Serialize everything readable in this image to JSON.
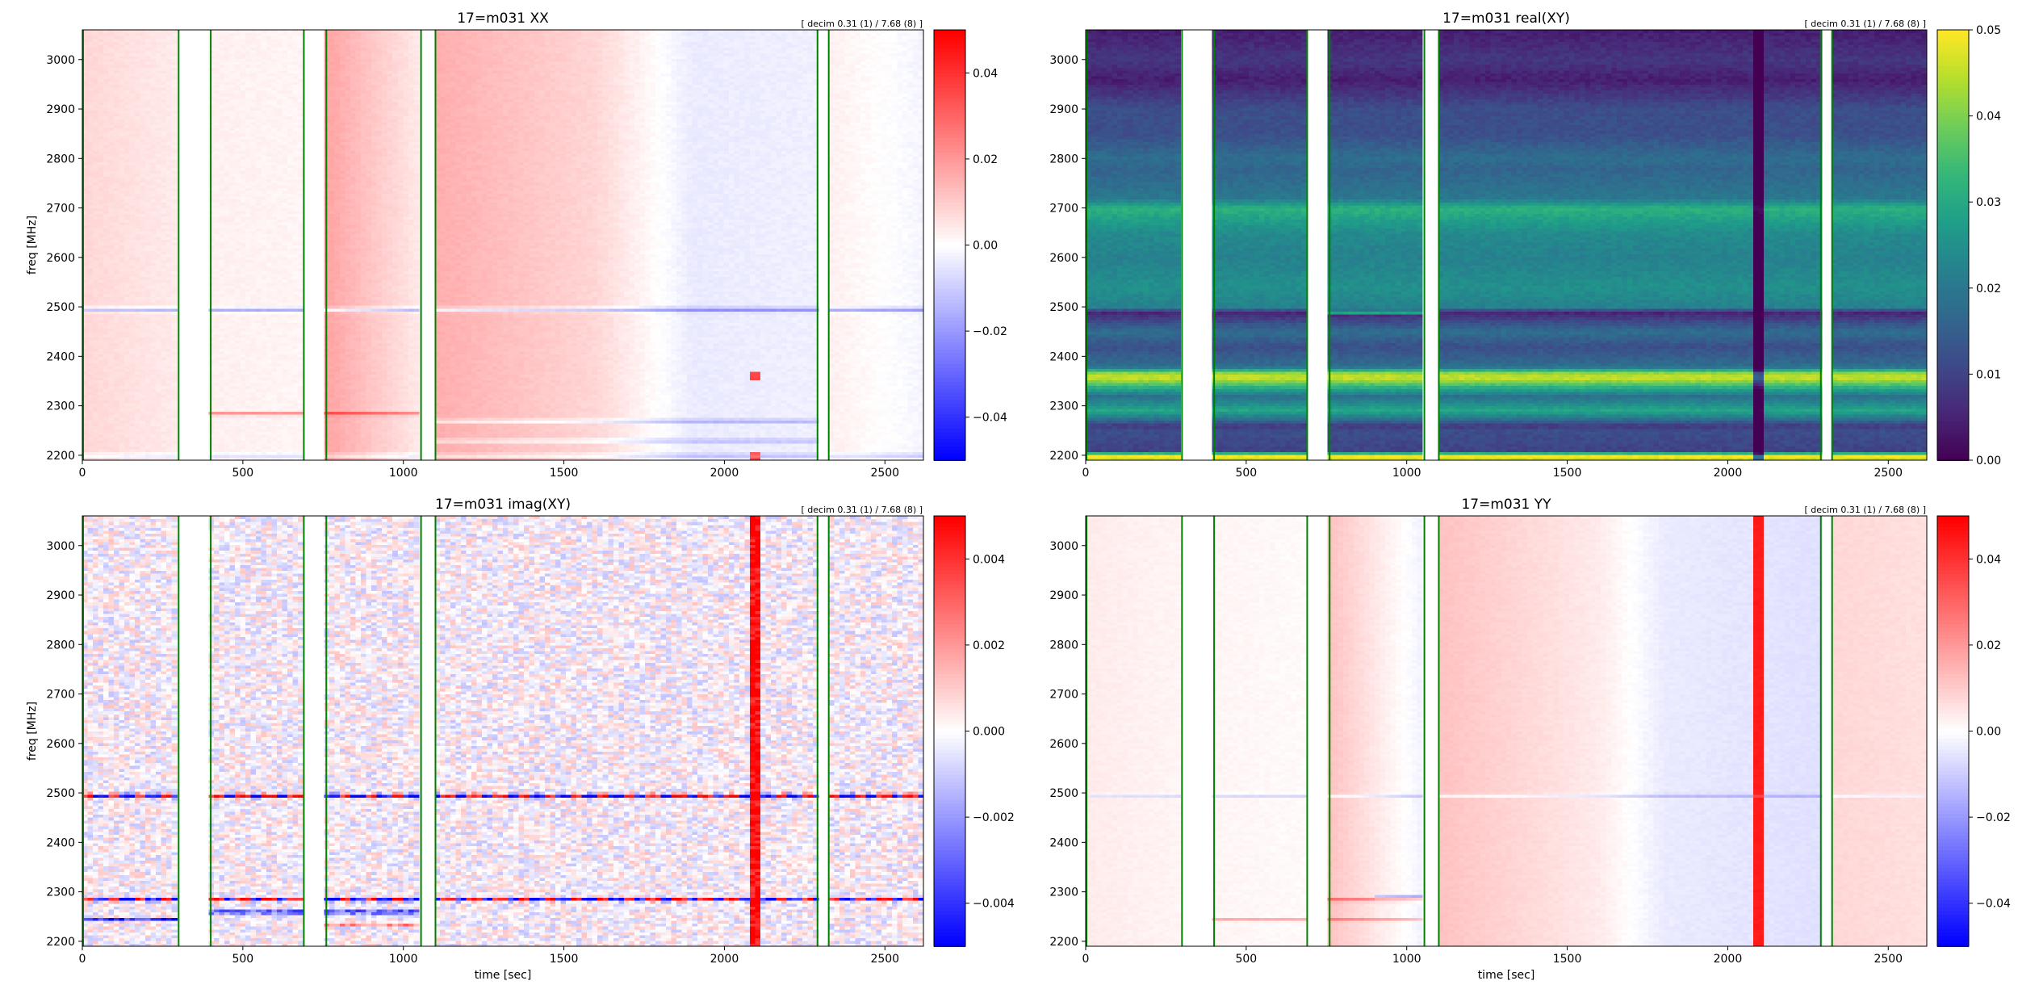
{
  "figure": {
    "gap_segments": [
      [
        300,
        400
      ],
      [
        690,
        760
      ],
      [
        1055,
        1100
      ],
      [
        2290,
        2325
      ]
    ],
    "colors": {
      "gap_line": "#008000",
      "background": "#ffffff"
    }
  },
  "chart_data": [
    {
      "type": "heatmap",
      "title": "17=m031  XX",
      "corner_note": "[ decim 0.31 (1) / 7.68 (8) ]",
      "xlabel": "",
      "ylabel": "freq [MHz]",
      "xlim": [
        0,
        2620
      ],
      "ylim": [
        2190,
        3060
      ],
      "xticks": [
        0,
        500,
        1000,
        1500,
        2000,
        2500
      ],
      "yticks": [
        2200,
        2300,
        2400,
        2500,
        2600,
        2700,
        2800,
        2900,
        3000
      ],
      "colormap": "bwr",
      "clim": [
        -0.05,
        0.05
      ],
      "cbar_ticks": [
        -0.04,
        -0.02,
        0.0,
        0.02,
        0.04
      ],
      "cbar_labels": [
        "−0.04",
        "−0.02",
        "0.00",
        "0.02",
        "0.04"
      ],
      "time_profile": [
        [
          0,
          0.008
        ],
        [
          300,
          0.004
        ],
        [
          400,
          0.003
        ],
        [
          690,
          0.002
        ],
        [
          760,
          0.018
        ],
        [
          1055,
          0.004
        ],
        [
          1100,
          0.016
        ],
        [
          1600,
          0.008
        ],
        [
          1900,
          -0.004
        ],
        [
          2290,
          -0.003
        ],
        [
          2325,
          0.003
        ],
        [
          2620,
          -0.002
        ]
      ],
      "freq_lines": [
        {
          "f": 2495,
          "amp": -0.02,
          "w": 4,
          "t": [
            0,
            2620
          ]
        },
        {
          "f": 2285,
          "amp": 0.02,
          "w": 3,
          "t": [
            400,
            1100
          ]
        },
        {
          "f": 2270,
          "amp": -0.015,
          "w": 3,
          "t": [
            1100,
            2290
          ]
        },
        {
          "f": 2230,
          "amp": -0.012,
          "w": 3,
          "t": [
            1100,
            2290
          ]
        },
        {
          "f": 2200,
          "amp": -0.01,
          "w": 4,
          "t": [
            0,
            2620
          ]
        }
      ],
      "spikes": [
        {
          "t": 2100,
          "w": 6,
          "amp": 0.04,
          "f": [
            2350,
            2370
          ]
        },
        {
          "t": 2100,
          "w": 6,
          "amp": 0.04,
          "f": [
            2190,
            2210
          ]
        }
      ],
      "noise": 0.001
    },
    {
      "type": "heatmap",
      "title": "17=m031  real(XY)",
      "corner_note": "[ decim 0.31 (1) / 7.68 (8) ]",
      "xlabel": "",
      "ylabel": "",
      "xlim": [
        0,
        2620
      ],
      "ylim": [
        2190,
        3060
      ],
      "xticks": [
        0,
        500,
        1000,
        1500,
        2000,
        2500
      ],
      "yticks": [
        2200,
        2300,
        2400,
        2500,
        2600,
        2700,
        2800,
        2900,
        3000
      ],
      "colormap": "viridis",
      "clim": [
        0.0,
        0.05
      ],
      "cbar_ticks": [
        0.0,
        0.01,
        0.02,
        0.03,
        0.04,
        0.05
      ],
      "cbar_labels": [
        "0.00",
        "0.01",
        "0.02",
        "0.03",
        "0.04",
        "0.05"
      ],
      "freq_profile": [
        [
          2190,
          0.045
        ],
        [
          2200,
          0.05
        ],
        [
          2210,
          0.01
        ],
        [
          2250,
          0.012
        ],
        [
          2260,
          0.008
        ],
        [
          2290,
          0.03
        ],
        [
          2320,
          0.018
        ],
        [
          2355,
          0.045
        ],
        [
          2365,
          0.045
        ],
        [
          2380,
          0.018
        ],
        [
          2420,
          0.012
        ],
        [
          2450,
          0.018
        ],
        [
          2490,
          0.005
        ],
        [
          2500,
          0.022
        ],
        [
          2540,
          0.025
        ],
        [
          2600,
          0.022
        ],
        [
          2650,
          0.024
        ],
        [
          2700,
          0.032
        ],
        [
          2720,
          0.02
        ],
        [
          2780,
          0.016
        ],
        [
          2800,
          0.018
        ],
        [
          2850,
          0.012
        ],
        [
          2900,
          0.012
        ],
        [
          2960,
          0.004
        ],
        [
          3000,
          0.008
        ],
        [
          3060,
          0.004
        ]
      ],
      "freq_lines": [
        {
          "f": 2490,
          "amp": 0.03,
          "w": 3,
          "t": [
            760,
            1055
          ]
        }
      ],
      "spikes": [
        {
          "t": 2100,
          "w": 5,
          "amp": -0.03,
          "f": [
            2190,
            3060
          ]
        }
      ],
      "noise": 0.0015
    },
    {
      "type": "heatmap",
      "title": "17=m031  imag(XY)",
      "corner_note": "[ decim 0.31 (1) / 7.68 (8) ]",
      "xlabel": "time [sec]",
      "ylabel": "freq [MHz]",
      "xlim": [
        0,
        2620
      ],
      "ylim": [
        2190,
        3060
      ],
      "xticks": [
        0,
        500,
        1000,
        1500,
        2000,
        2500
      ],
      "yticks": [
        2200,
        2300,
        2400,
        2500,
        2600,
        2700,
        2800,
        2900,
        3000
      ],
      "colormap": "bwr",
      "clim": [
        -0.005,
        0.005
      ],
      "cbar_ticks": [
        -0.004,
        -0.002,
        0.0,
        0.002,
        0.004
      ],
      "cbar_labels": [
        "−0.004",
        "−0.002",
        "0.000",
        "0.002",
        "0.004"
      ],
      "freq_lines": [
        {
          "f": 2495,
          "amp": 0.005,
          "w": 4,
          "t": [
            0,
            2620
          ],
          "alt": true
        },
        {
          "f": 2285,
          "amp": 0.005,
          "w": 3,
          "t": [
            0,
            2620
          ],
          "alt": true
        },
        {
          "f": 2260,
          "amp": -0.005,
          "w": 3,
          "t": [
            400,
            1100
          ]
        },
        {
          "f": 2245,
          "amp": -0.004,
          "w": 2,
          "t": [
            0,
            300
          ]
        },
        {
          "f": 2235,
          "amp": 0.003,
          "w": 2,
          "t": [
            760,
            1055
          ]
        }
      ],
      "spikes": [
        {
          "t": 2100,
          "w": 10,
          "amp": 0.005,
          "f": [
            2190,
            3060
          ]
        }
      ],
      "noise": 0.0012
    },
    {
      "type": "heatmap",
      "title": "17=m031  YY",
      "corner_note": "[ decim 0.31 (1) / 7.68 (8) ]",
      "xlabel": "time [sec]",
      "ylabel": "",
      "xlim": [
        0,
        2620
      ],
      "ylim": [
        2190,
        3060
      ],
      "xticks": [
        0,
        500,
        1000,
        1500,
        2000,
        2500
      ],
      "yticks": [
        2200,
        2300,
        2400,
        2500,
        2600,
        2700,
        2800,
        2900,
        3000
      ],
      "colormap": "bwr",
      "clim": [
        -0.05,
        0.05
      ],
      "cbar_ticks": [
        -0.04,
        -0.02,
        0.0,
        0.02,
        0.04
      ],
      "cbar_labels": [
        "−0.04",
        "−0.02",
        "0.00",
        "0.02",
        "0.04"
      ],
      "time_profile": [
        [
          0,
          0.004
        ],
        [
          300,
          0.002
        ],
        [
          400,
          0.002
        ],
        [
          690,
          0.001
        ],
        [
          760,
          0.012
        ],
        [
          1055,
          -0.003
        ],
        [
          1100,
          0.012
        ],
        [
          1600,
          0.004
        ],
        [
          1800,
          -0.004
        ],
        [
          2290,
          -0.006
        ],
        [
          2325,
          0.008
        ],
        [
          2620,
          0.006
        ]
      ],
      "freq_lines": [
        {
          "f": 2495,
          "amp": -0.01,
          "w": 3,
          "t": [
            0,
            2620
          ]
        },
        {
          "f": 2285,
          "amp": 0.02,
          "w": 3,
          "t": [
            760,
            1055
          ]
        },
        {
          "f": 2290,
          "amp": -0.02,
          "w": 3,
          "t": [
            900,
            1055
          ]
        },
        {
          "f": 2245,
          "amp": 0.015,
          "w": 3,
          "t": [
            400,
            1100
          ]
        }
      ],
      "spikes": [
        {
          "t": 2100,
          "w": 12,
          "amp": 0.05,
          "f": [
            2190,
            3060
          ]
        }
      ],
      "noise": 0.0008
    }
  ]
}
